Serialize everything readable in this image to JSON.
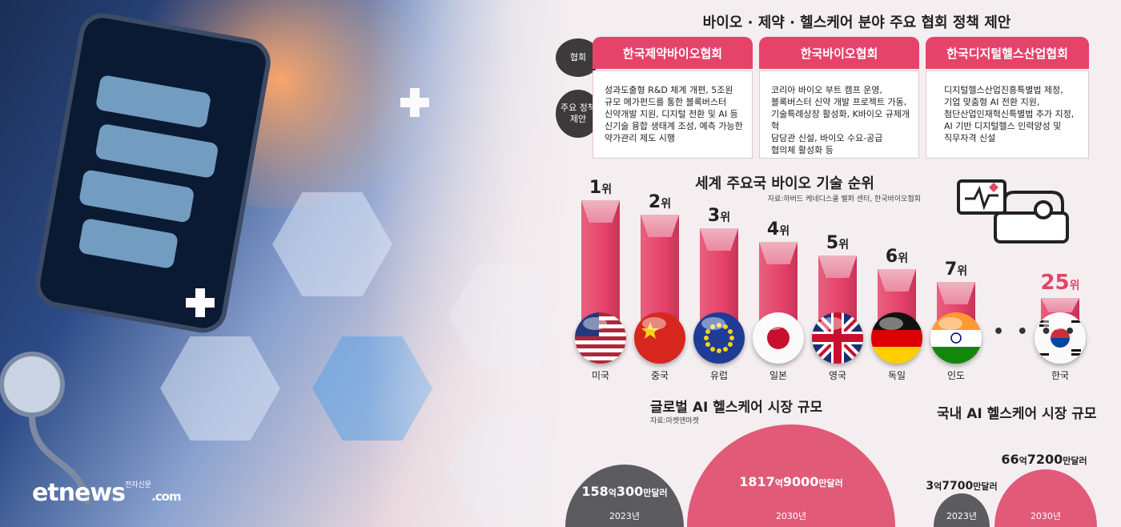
{
  "infographic": {
    "title": "바이오 · 제약 · 헬스케어 분야 주요 협회 정책 제안",
    "row_labels": {
      "association": "협회",
      "policy_line1": "주요 정책",
      "policy_line2": "제안"
    },
    "associations": [
      {
        "name": "한국제약바이오협회",
        "policy": "성과도출형  R&D 체계 개편, 5조원\n규모 메가펀드를 통한 블록버스터\n신약개발 지원, 디지털 전환 및 AI 등\n신기술 융합 생태계 조성, 예측  가능한\n약가관리 제도 시행"
      },
      {
        "name": "한국바이오협회",
        "policy": "코리아 바이오 부트 캠프 운영,\n블록버스터 신약 개발  프로젝트 가동,\n기술특례상장 활성화, K바이오 규제개혁\n담당관 신설, 바이오 수요-공급\n협의체 활성화 등"
      },
      {
        "name": "한국디지털헬스산업협회",
        "policy": "디지털헬스산업진흥특별법 제정,\n기업 맞춤형 AI 전환  지원,\n첨단산업인재혁신특별법 추가 지정,\nAI 기반 디지털헬스 인력양성 및\n직무자격 신설"
      }
    ]
  },
  "ranking": {
    "title": "세계 주요국 바이오 기술 순위",
    "source": "자료:하버드 케네디스쿨 벨퍼 센터, 한국바이오협회",
    "rank_suffix": "위",
    "ellipsis": "• • • •",
    "countries": [
      {
        "name": "미국",
        "rank": "1",
        "flag": "flag-usa"
      },
      {
        "name": "중국",
        "rank": "2",
        "flag": "flag-china"
      },
      {
        "name": "유럽",
        "rank": "3",
        "flag": "flag-eu"
      },
      {
        "name": "일본",
        "rank": "4",
        "flag": "flag-japan"
      },
      {
        "name": "영국",
        "rank": "5",
        "flag": "flag-uk"
      },
      {
        "name": "독일",
        "rank": "6",
        "flag": "flag-germany"
      },
      {
        "name": "인도",
        "rank": "7",
        "flag": "flag-india"
      },
      {
        "name": "한국",
        "rank": "25",
        "flag": "flag-korea"
      }
    ]
  },
  "global_market": {
    "title": "글로벌 AI 헬스케어 시장 규모",
    "source": "자료:마켓앤마켓",
    "items": [
      {
        "year": "2023년",
        "amount_a": "158",
        "unit_a": "억",
        "amount_b": "300",
        "unit_b": "만달러"
      },
      {
        "year": "2030년",
        "amount_a": "1817",
        "unit_a": "억",
        "amount_b": "9000",
        "unit_b": "만달러"
      }
    ]
  },
  "domestic_market": {
    "title": "국내 AI 헬스케어 시장 규모",
    "items": [
      {
        "year": "2023년",
        "amount_a": "3",
        "unit_a": "억",
        "amount_b": "7700",
        "unit_b": "만달러"
      },
      {
        "year": "2030년",
        "amount_a": "66",
        "unit_a": "억",
        "amount_b": "7200",
        "unit_b": "만달러"
      }
    ]
  },
  "branding": {
    "logo": "etnews",
    "logo_suffix": ".com",
    "logo_note": "전자신문"
  },
  "colors": {
    "accent": "#e5436a",
    "dark": "#3d3a3b",
    "dome_dark": "#5c5b60",
    "dome_pink": "#e15a78"
  }
}
